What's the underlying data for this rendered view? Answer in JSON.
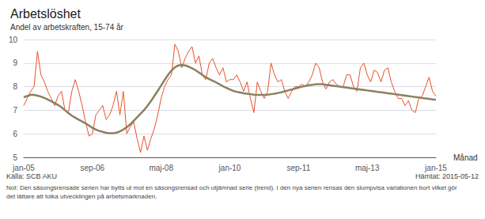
{
  "chart_data": {
    "type": "line",
    "title": "Arbetslöshet",
    "subtitle": "Andel av arbetskraften, 15-74 år",
    "xlabel": "Månad",
    "annotations": [
      "Källa: SCB AKU",
      "Hämtat: 2015-05-12",
      "Not: Den säsongsrensade serien har bytts ut mot en säsongsrensad och utjämnad serie (trend). I den nya serien rensas den slumpvisa variationen bort vilket gör det lättare att tolka utvecklingen på arbetsmarknaden."
    ],
    "categories": [
      "jan-05",
      null,
      null,
      null,
      null,
      null,
      null,
      null,
      null,
      null,
      null,
      null,
      null,
      null,
      null,
      null,
      null,
      null,
      null,
      null,
      "sep-06",
      null,
      null,
      null,
      null,
      null,
      null,
      null,
      null,
      null,
      null,
      null,
      null,
      null,
      null,
      null,
      null,
      null,
      null,
      null,
      "maj-08",
      null,
      null,
      null,
      null,
      null,
      null,
      null,
      null,
      null,
      null,
      null,
      null,
      null,
      null,
      null,
      null,
      null,
      null,
      null,
      "jan-10",
      null,
      null,
      null,
      null,
      null,
      null,
      null,
      null,
      null,
      null,
      null,
      null,
      null,
      null,
      null,
      null,
      null,
      null,
      null,
      "sep-11",
      null,
      null,
      null,
      null,
      null,
      null,
      null,
      null,
      null,
      null,
      null,
      null,
      null,
      null,
      null,
      null,
      null,
      null,
      null,
      "maj-13",
      null,
      null,
      null,
      null,
      null,
      null,
      null,
      null,
      null,
      null,
      null,
      null,
      null,
      null,
      null,
      null,
      null,
      null,
      null,
      "jan-15"
    ],
    "series": [
      {
        "color": "#E8522A",
        "values": [
          7.2,
          7.5,
          7.8,
          8.0,
          9.5,
          8.5,
          8.2,
          7.8,
          7.5,
          7.2,
          7.6,
          7.8,
          7.0,
          6.9,
          7.8,
          8.3,
          7.8,
          7.2,
          6.5,
          5.9,
          6.0,
          6.8,
          7.0,
          7.2,
          6.6,
          6.8,
          7.2,
          7.8,
          6.8,
          7.8,
          6.0,
          6.3,
          6.5,
          5.8,
          5.2,
          5.9,
          5.3,
          5.8,
          6.2,
          6.8,
          7.5,
          8.0,
          8.3,
          8.5,
          9.8,
          9.5,
          8.8,
          9.2,
          9.5,
          9.7,
          9.0,
          9.3,
          8.5,
          8.3,
          9.0,
          9.2,
          8.8,
          8.5,
          8.8,
          8.2,
          8.3,
          8.3,
          8.5,
          8.2,
          7.8,
          8.2,
          7.5,
          6.9,
          8.2,
          7.8,
          7.5,
          7.8,
          9.0,
          8.5,
          8.2,
          8.3,
          7.8,
          7.5,
          7.8,
          8.0,
          8.0,
          8.1,
          8.0,
          8.2,
          8.5,
          9.0,
          8.8,
          8.2,
          7.9,
          8.2,
          8.3,
          8.1,
          8.0,
          8.0,
          8.5,
          8.5,
          8.0,
          7.8,
          8.8,
          9.0,
          8.5,
          8.2,
          8.7,
          8.6,
          8.2,
          8.7,
          8.8,
          8.2,
          7.8,
          7.5,
          7.5,
          7.2,
          7.4,
          7.0,
          6.9,
          7.5,
          7.6,
          8.0,
          8.4,
          7.8,
          7.6
        ]
      },
      {
        "color": "#8B8060",
        "values": [
          7.55,
          7.6,
          7.65,
          7.65,
          7.62,
          7.58,
          7.52,
          7.45,
          7.38,
          7.3,
          7.22,
          7.12,
          7.0,
          6.88,
          6.77,
          6.68,
          6.6,
          6.52,
          6.44,
          6.35,
          6.25,
          6.18,
          6.12,
          6.08,
          6.04,
          6.02,
          6.02,
          6.05,
          6.1,
          6.18,
          6.28,
          6.4,
          6.55,
          6.7,
          6.85,
          7.0,
          7.18,
          7.38,
          7.6,
          7.82,
          8.05,
          8.28,
          8.5,
          8.68,
          8.82,
          8.9,
          8.92,
          8.9,
          8.85,
          8.78,
          8.7,
          8.6,
          8.5,
          8.4,
          8.32,
          8.25,
          8.18,
          8.1,
          8.02,
          7.95,
          7.88,
          7.82,
          7.78,
          7.75,
          7.72,
          7.7,
          7.68,
          7.66,
          7.65,
          7.65,
          7.65,
          7.66,
          7.68,
          7.7,
          7.73,
          7.76,
          7.8,
          7.84,
          7.88,
          7.92,
          7.96,
          8.0,
          8.03,
          8.06,
          8.08,
          8.1,
          8.1,
          8.1,
          8.08,
          8.06,
          8.04,
          8.02,
          8.0,
          7.98,
          7.96,
          7.94,
          7.92,
          7.9,
          7.88,
          7.86,
          7.84,
          7.82,
          7.8,
          7.78,
          7.76,
          7.74,
          7.72,
          7.7,
          7.68,
          7.66,
          7.64,
          7.62,
          7.6,
          7.58,
          7.56,
          7.54,
          7.52,
          7.5,
          7.48,
          7.46,
          7.45
        ]
      }
    ],
    "ylim": [
      5,
      10
    ],
    "yticks": [
      5,
      6,
      7,
      8,
      9,
      10
    ],
    "grid": true
  }
}
